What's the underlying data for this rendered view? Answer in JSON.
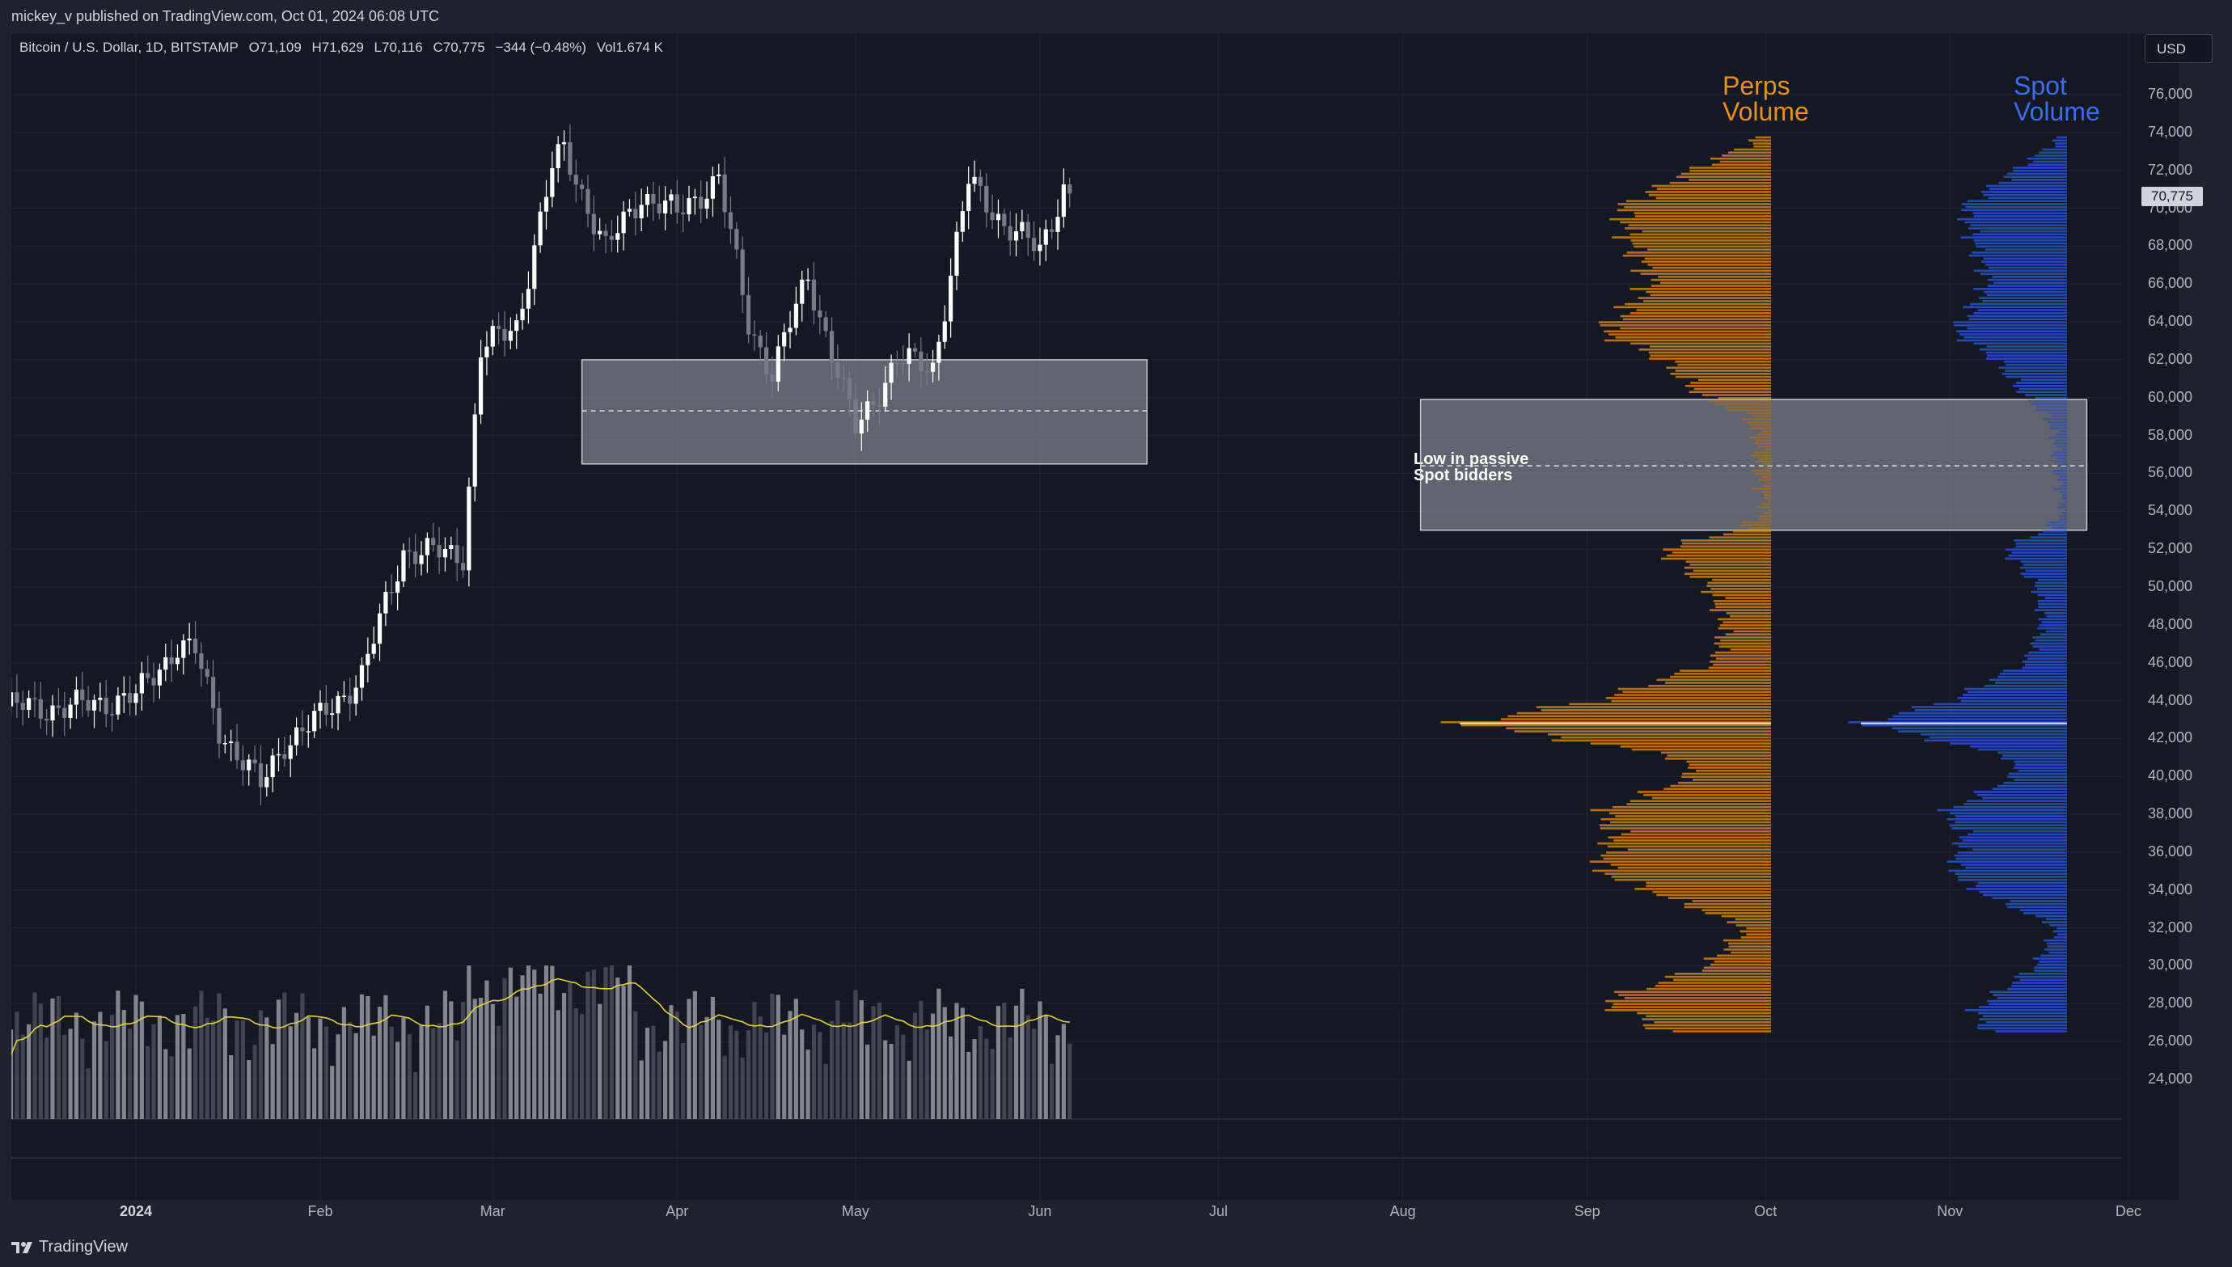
{
  "header": {
    "published_text": "mickey_v published on TradingView.com, Oct 01, 2024 06:08 UTC",
    "symbol_desc": "Bitcoin / U.S. Dollar, 1D, BITSTAMP",
    "open": "O71,109",
    "high": "H71,629",
    "low": "L70,116",
    "close": "C70,775",
    "change": "−344 (−0.48%)",
    "volume": "Vol1.674 K",
    "currency": "USD",
    "last_price": "70,775"
  },
  "annotations": {
    "perps_title_1": "Perps",
    "perps_title_2": "Volume",
    "spot_title_1": "Spot",
    "spot_title_2": "Volume",
    "box_note_1": "Low in passive",
    "box_note_2": "Spot bidders"
  },
  "footer": {
    "brand": "TradingView"
  },
  "colors": {
    "background": "#141823",
    "up_candle": "#ffffff",
    "down_candle": "#787b86",
    "perps": "#b8700f",
    "spot": "#2348b8",
    "volume_ma": "#e0d23a",
    "zone": "#9598a1"
  },
  "chart_data": {
    "type": "candlestick",
    "title": "Bitcoin / U.S. Dollar, 1D, BITSTAMP",
    "y_axis_ticks": [
      76000,
      74000,
      72000,
      70000,
      68000,
      66000,
      64000,
      62000,
      60000,
      58000,
      56000,
      54000,
      52000,
      50000,
      48000,
      46000,
      44000,
      42000,
      40000,
      38000,
      36000,
      34000,
      32000,
      30000,
      28000,
      26000,
      24000
    ],
    "y_axis_labels": [
      "76,000",
      "74,000",
      "72,000",
      "70,000",
      "68,000",
      "66,000",
      "64,000",
      "62,000",
      "60,000",
      "58,000",
      "56,000",
      "54,000",
      "52,000",
      "50,000",
      "48,000",
      "46,000",
      "44,000",
      "42,000",
      "40,000",
      "38,000",
      "36,000",
      "34,000",
      "32,000",
      "30,000",
      "28,000",
      "26,000",
      "24,000"
    ],
    "ylim": [
      23000,
      77500
    ],
    "x_axis_labels": [
      "2024",
      "Feb",
      "Mar",
      "Apr",
      "May",
      "Jun",
      "Jul",
      "Aug",
      "Sep",
      "Oct",
      "Nov",
      "Dec"
    ],
    "x_axis_dates": [
      "2024-01-01",
      "2024-02-01",
      "2024-03-01",
      "2024-04-01",
      "2024-05-01",
      "2024-06-01",
      "2024-07-01",
      "2024-08-01",
      "2024-09-01",
      "2024-10-01",
      "2024-11-01",
      "2024-12-01"
    ],
    "close_keypoints": [
      [
        "2023-12-10",
        43700
      ],
      [
        "2023-12-20",
        43600
      ],
      [
        "2024-01-01",
        44200
      ],
      [
        "2024-01-08",
        46900
      ],
      [
        "2024-01-11",
        46600
      ],
      [
        "2024-01-15",
        42500
      ],
      [
        "2024-01-22",
        39500
      ],
      [
        "2024-01-26",
        41800
      ],
      [
        "2024-02-01",
        43100
      ],
      [
        "2024-02-08",
        45300
      ],
      [
        "2024-02-15",
        51900
      ],
      [
        "2024-02-25",
        51700
      ],
      [
        "2024-02-28",
        62500
      ],
      [
        "2024-03-05",
        63800
      ],
      [
        "2024-03-11",
        72100
      ],
      [
        "2024-03-13",
        73100
      ],
      [
        "2024-03-20",
        67800
      ],
      [
        "2024-03-26",
        70700
      ],
      [
        "2024-04-01",
        69700
      ],
      [
        "2024-04-08",
        71600
      ],
      [
        "2024-04-13",
        63900
      ],
      [
        "2024-04-17",
        61300
      ],
      [
        "2024-04-23",
        66400
      ],
      [
        "2024-05-01",
        58300
      ],
      [
        "2024-05-08",
        62000
      ],
      [
        "2024-05-14",
        61600
      ],
      [
        "2024-05-20",
        71400
      ],
      [
        "2024-05-26",
        69200
      ],
      [
        "2024-06-01",
        67700
      ],
      [
        "2024-06-05",
        71100
      ],
      [
        "2024-06-06",
        70775
      ]
    ],
    "volume_ma_level_range": [
      0.2,
      0.45
    ],
    "zones": [
      {
        "from_date": "2024-03-16",
        "to_date": "2024-06-19",
        "low": 56500,
        "high": 62000,
        "mid": 59300
      },
      {
        "from_date": "2024-08-04",
        "to_date": "2024-11-24",
        "low": 53000,
        "high": 59900,
        "mid": 56400
      }
    ],
    "volume_profiles": [
      {
        "name": "Perps Volume",
        "price_levels": [
          26000,
          27500,
          28000,
          30000,
          32000,
          34000,
          35000,
          37000,
          38000,
          40000,
          41000,
          42800,
          44000,
          46000,
          48000,
          50000,
          52000,
          53000,
          54000,
          56000,
          58000,
          59000,
          60000,
          62000,
          63500,
          64000,
          66000,
          68000,
          70000,
          72000,
          73500
        ],
        "relative_volume": [
          0.3,
          0.45,
          0.55,
          0.2,
          0.08,
          0.4,
          0.55,
          0.5,
          0.55,
          0.25,
          0.3,
          1.0,
          0.55,
          0.18,
          0.15,
          0.2,
          0.35,
          0.1,
          0.02,
          0.04,
          0.05,
          0.08,
          0.22,
          0.35,
          0.55,
          0.5,
          0.38,
          0.45,
          0.48,
          0.25,
          0.05
        ]
      },
      {
        "name": "Spot Volume",
        "price_levels": [
          26000,
          27500,
          28000,
          30000,
          32000,
          34000,
          35000,
          37000,
          38000,
          40000,
          41000,
          42800,
          44000,
          46000,
          48000,
          50000,
          52000,
          53000,
          54000,
          56000,
          58000,
          59000,
          60000,
          62000,
          63500,
          64000,
          66000,
          68000,
          70000,
          72000,
          73500
        ],
        "relative_volume": [
          0.35,
          0.45,
          0.4,
          0.15,
          0.05,
          0.45,
          0.55,
          0.5,
          0.6,
          0.25,
          0.28,
          1.0,
          0.55,
          0.2,
          0.12,
          0.15,
          0.3,
          0.1,
          0.02,
          0.05,
          0.06,
          0.1,
          0.2,
          0.35,
          0.55,
          0.5,
          0.38,
          0.45,
          0.5,
          0.25,
          0.05
        ]
      }
    ]
  }
}
